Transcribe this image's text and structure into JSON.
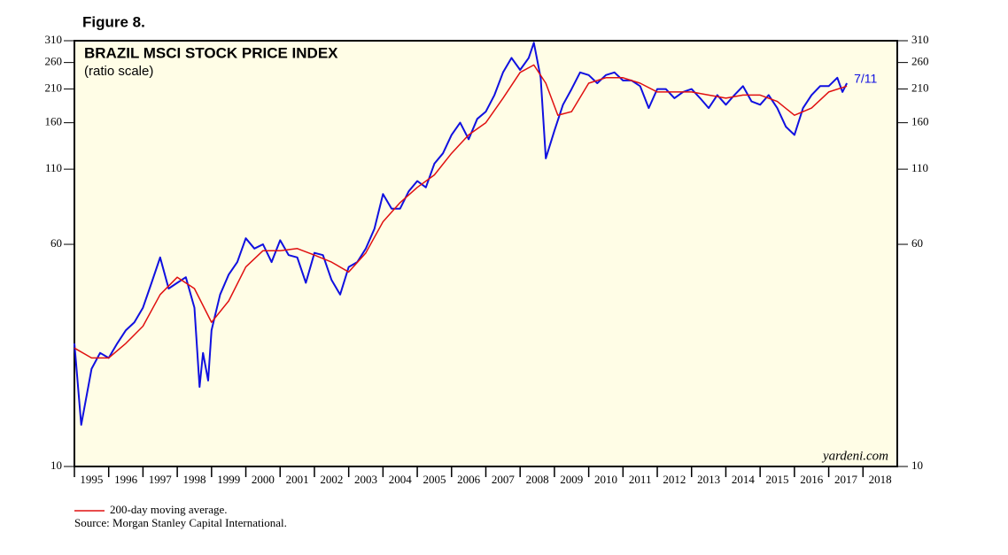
{
  "figure_label": "Figure 8.",
  "chart_data": {
    "type": "line",
    "title": "BRAZIL MSCI STOCK PRICE INDEX",
    "subtitle": "(ratio scale)",
    "log_scale": true,
    "ylim": [
      10,
      310
    ],
    "yticks": [
      10,
      60,
      110,
      160,
      210,
      260,
      310
    ],
    "xlim": [
      1995,
      2019
    ],
    "xticks": [
      1995,
      1996,
      1997,
      1998,
      1999,
      2000,
      2001,
      2002,
      2003,
      2004,
      2005,
      2006,
      2007,
      2008,
      2009,
      2010,
      2011,
      2012,
      2013,
      2014,
      2015,
      2016,
      2017,
      2018
    ],
    "background": "#fffde6",
    "series": [
      {
        "name": "BRAZIL MSCI STOCK PRICE INDEX",
        "color": "#1010e0",
        "x": [
          1995.0,
          1995.2,
          1995.5,
          1995.75,
          1996.0,
          1996.25,
          1996.5,
          1996.75,
          1997.0,
          1997.25,
          1997.5,
          1997.75,
          1998.0,
          1998.25,
          1998.5,
          1998.65,
          1998.75,
          1998.9,
          1999.0,
          1999.25,
          1999.5,
          1999.75,
          2000.0,
          2000.25,
          2000.5,
          2000.75,
          2001.0,
          2001.25,
          2001.5,
          2001.75,
          2002.0,
          2002.25,
          2002.5,
          2002.75,
          2003.0,
          2003.25,
          2003.5,
          2003.75,
          2004.0,
          2004.25,
          2004.5,
          2004.75,
          2005.0,
          2005.25,
          2005.5,
          2005.75,
          2006.0,
          2006.25,
          2006.5,
          2006.75,
          2007.0,
          2007.25,
          2007.5,
          2007.75,
          2008.0,
          2008.25,
          2008.4,
          2008.6,
          2008.75,
          2009.0,
          2009.25,
          2009.5,
          2009.75,
          2010.0,
          2010.25,
          2010.5,
          2010.75,
          2011.0,
          2011.25,
          2011.5,
          2011.75,
          2012.0,
          2012.25,
          2012.5,
          2012.75,
          2013.0,
          2013.25,
          2013.5,
          2013.75,
          2014.0,
          2014.25,
          2014.5,
          2014.75,
          2015.0,
          2015.25,
          2015.5,
          2015.75,
          2016.0,
          2016.25,
          2016.5,
          2016.75,
          2017.0,
          2017.25,
          2017.4,
          2017.53
        ],
        "values": [
          27,
          14,
          22,
          25,
          24,
          27,
          30,
          32,
          36,
          44,
          54,
          42,
          44,
          46,
          36,
          19,
          25,
          20,
          30,
          40,
          47,
          52,
          63,
          58,
          60,
          52,
          62,
          55,
          54,
          44,
          56,
          55,
          45,
          40,
          50,
          52,
          58,
          68,
          90,
          80,
          80,
          92,
          100,
          95,
          115,
          125,
          145,
          160,
          140,
          165,
          175,
          200,
          240,
          270,
          245,
          270,
          305,
          230,
          120,
          150,
          185,
          210,
          240,
          235,
          220,
          235,
          240,
          225,
          225,
          215,
          180,
          210,
          210,
          195,
          205,
          210,
          195,
          180,
          200,
          185,
          200,
          215,
          190,
          185,
          200,
          180,
          155,
          145,
          180,
          200,
          215,
          215,
          230,
          205,
          220
        ]
      },
      {
        "name": "200-day moving average.",
        "color": "#e01010",
        "x": [
          1995.0,
          1995.5,
          1996.0,
          1996.5,
          1997.0,
          1997.5,
          1998.0,
          1998.5,
          1999.0,
          1999.5,
          2000.0,
          2000.5,
          2001.0,
          2001.5,
          2002.0,
          2002.5,
          2003.0,
          2003.5,
          2004.0,
          2004.5,
          2005.0,
          2005.5,
          2006.0,
          2006.5,
          2007.0,
          2007.5,
          2008.0,
          2008.4,
          2008.75,
          2009.1,
          2009.5,
          2010.0,
          2010.5,
          2011.0,
          2011.5,
          2012.0,
          2012.5,
          2013.0,
          2013.5,
          2014.0,
          2014.5,
          2015.0,
          2015.5,
          2016.0,
          2016.5,
          2017.0,
          2017.53
        ],
        "values": [
          26,
          24,
          24,
          27,
          31,
          40,
          46,
          42,
          32,
          38,
          50,
          57,
          57,
          58,
          55,
          52,
          48,
          56,
          72,
          84,
          95,
          105,
          125,
          145,
          160,
          195,
          240,
          255,
          220,
          170,
          175,
          220,
          230,
          230,
          220,
          205,
          205,
          205,
          200,
          195,
          200,
          200,
          190,
          170,
          180,
          205,
          215
        ]
      }
    ],
    "annotations": [
      "7/11",
      "yardeni.com"
    ],
    "source": "Source: Morgan Stanley Capital International."
  }
}
